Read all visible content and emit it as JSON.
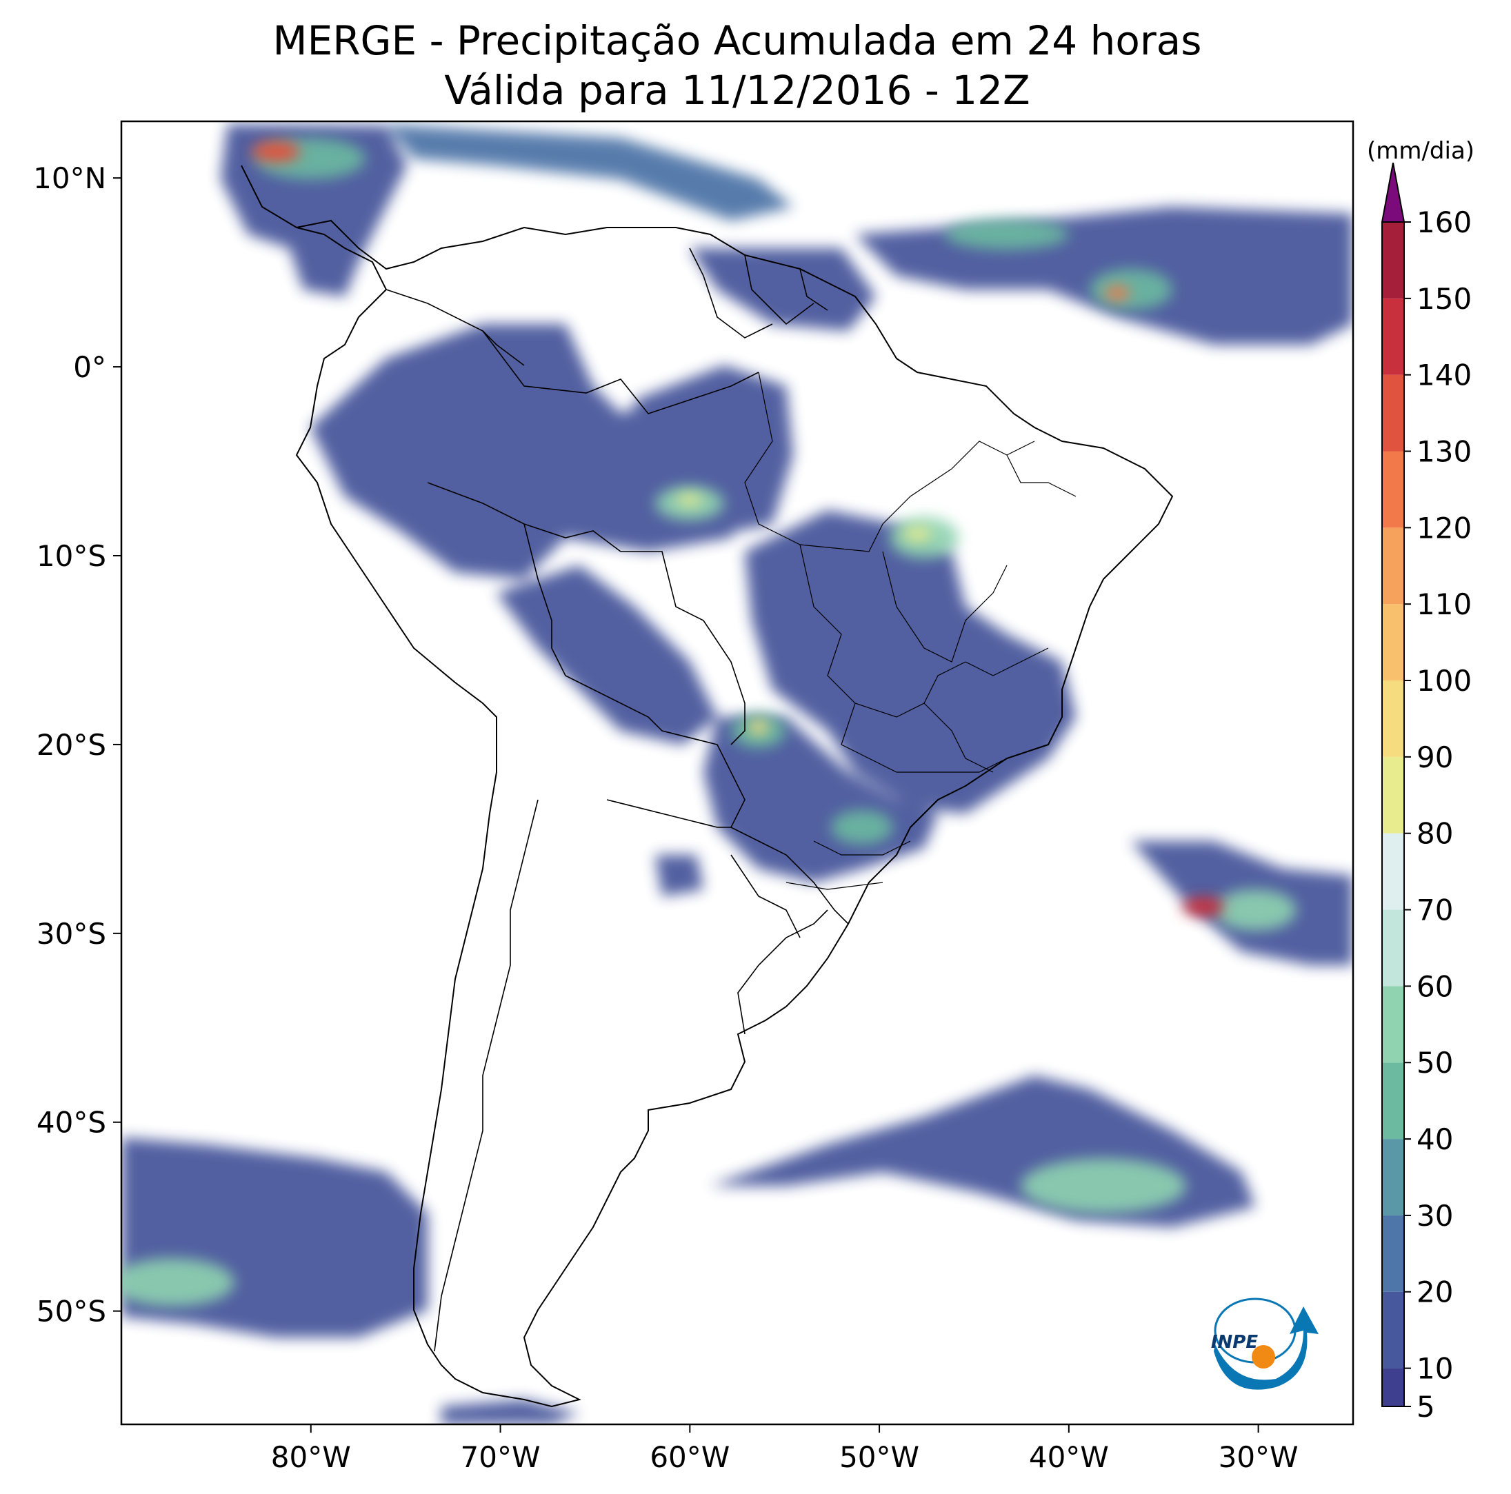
{
  "title": {
    "line1": "MERGE - Precipitação Acumulada em 24 horas",
    "line2": "Válida para 11/12/2016 - 12Z"
  },
  "axes": {
    "lon_ticks": [
      "80°W",
      "70°W",
      "60°W",
      "50°W",
      "40°W",
      "30°W"
    ],
    "lon_values": [
      -80,
      -70,
      -60,
      -50,
      -40,
      -30
    ],
    "lat_ticks": [
      "10°N",
      "0°",
      "10°S",
      "20°S",
      "30°S",
      "40°S",
      "50°S"
    ],
    "lat_values": [
      10,
      0,
      -10,
      -20,
      -30,
      -40,
      -50
    ],
    "extent": {
      "lon_min": -90,
      "lon_max": -25,
      "lat_min": -56,
      "lat_max": 13
    }
  },
  "colorbar": {
    "unit": "(mm/dia)",
    "tick_labels": [
      "5",
      "10",
      "20",
      "30",
      "40",
      "50",
      "60",
      "70",
      "80",
      "90",
      "100",
      "110",
      "120",
      "130",
      "140",
      "150",
      "160"
    ],
    "levels": [
      5,
      10,
      20,
      30,
      40,
      50,
      60,
      70,
      80,
      90,
      100,
      110,
      120,
      130,
      140,
      150,
      160
    ],
    "extend": "max",
    "colors": [
      "#3f3f8f",
      "#48589c",
      "#4f76a8",
      "#5a98a8",
      "#6cbaa0",
      "#8fd3b0",
      "#c3e6dc",
      "#dfeeee",
      "#e8ec8f",
      "#f6dc7e",
      "#f8c06c",
      "#f6a15c",
      "#f2794a",
      "#e0533e",
      "#c7303c",
      "#a51e3a",
      "#7b0a7a"
    ]
  },
  "logo": {
    "text": "INPE",
    "ring_color": "#0a77b5",
    "dot_color": "#f08a14"
  }
}
